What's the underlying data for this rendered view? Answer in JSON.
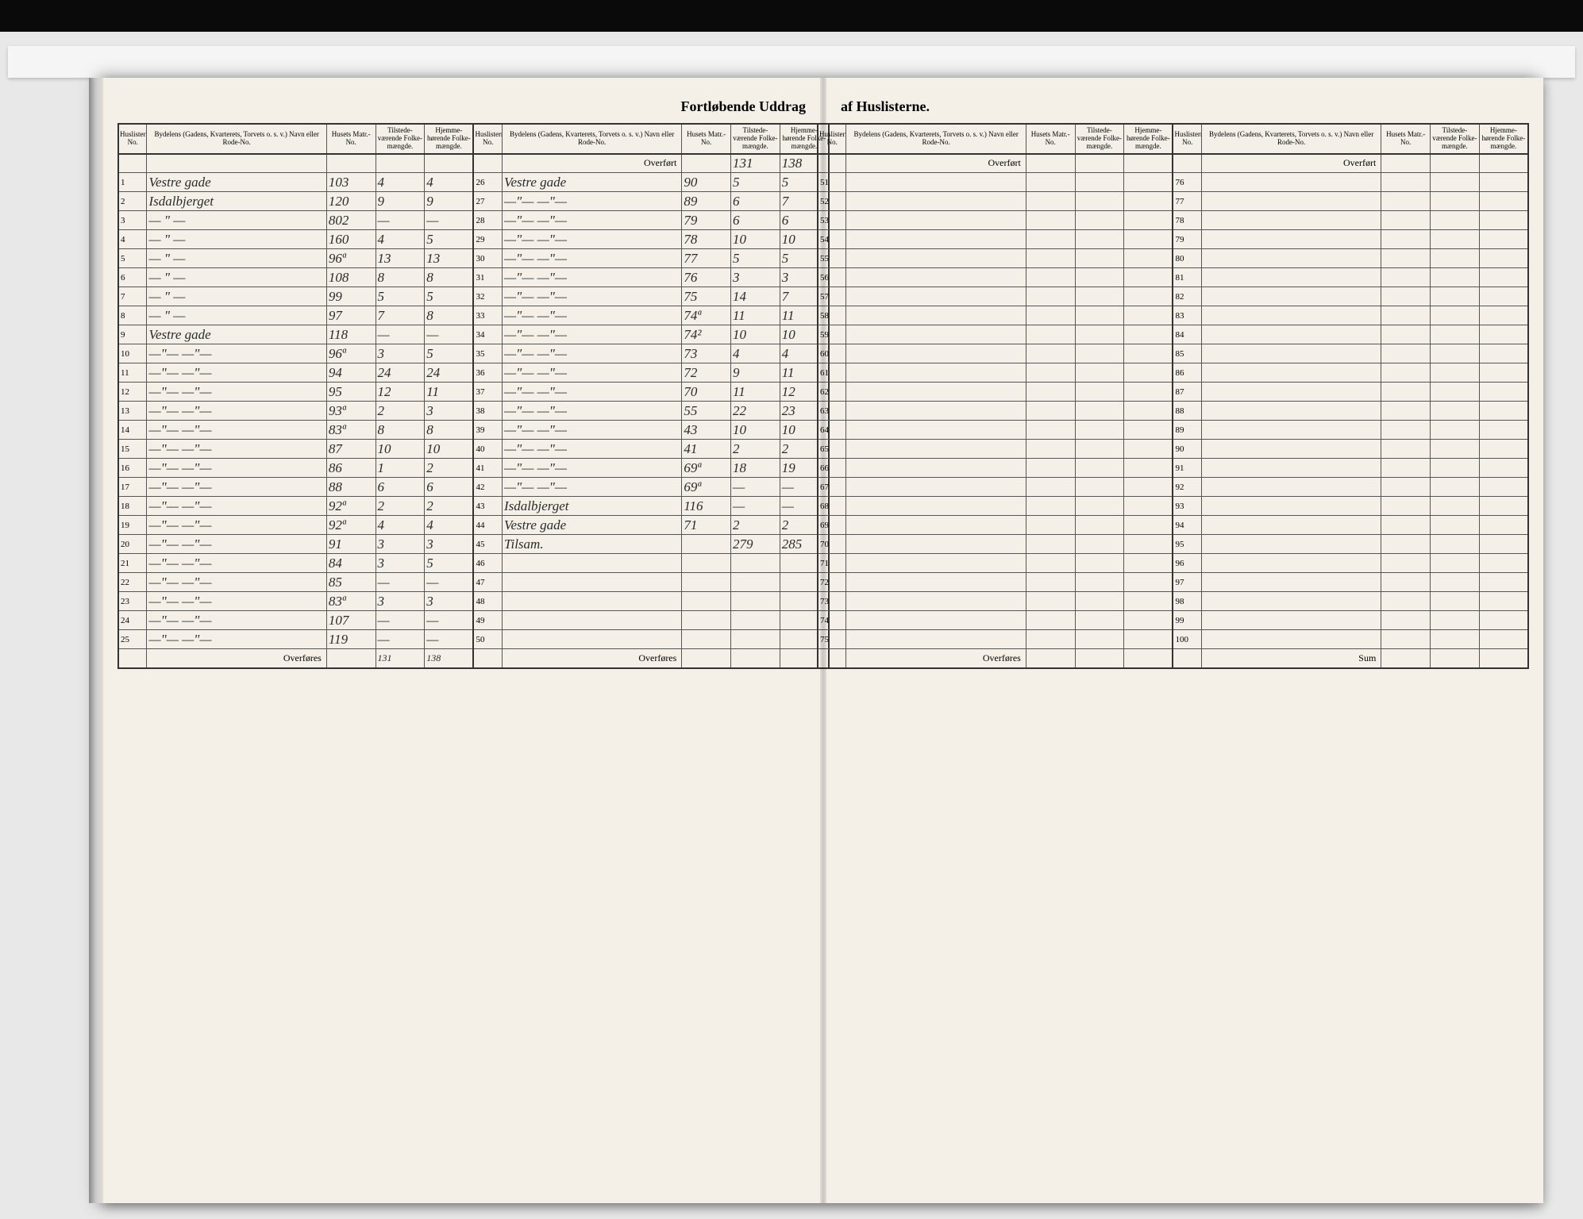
{
  "title_left": "Fortløbende Uddrag",
  "title_right": "af Huslisterne.",
  "headers": {
    "idx": "Huslisternes No.",
    "name": "Bydelens (Gadens, Kvarterets, Torvets o. s. v.) Navn eller Rode-No.",
    "matr": "Husets Matr.- No.",
    "pop1": "Tilstede- værende Folke- mængde.",
    "pop2": "Hjemme- hørende Folke- mængde."
  },
  "overfort": "Overført",
  "overfores": "Overføres",
  "tilsam": "Tilsam.",
  "sum": "Sum",
  "left_block1": [
    {
      "i": "1",
      "name": "Vestre gade",
      "m": "103",
      "a": "4",
      "b": "4"
    },
    {
      "i": "2",
      "name": "Isdalbjerget",
      "m": "120",
      "a": "9",
      "b": "9"
    },
    {
      "i": "3",
      "name": "— \" —",
      "m": "802",
      "a": "—",
      "b": "—"
    },
    {
      "i": "4",
      "name": "— \" —",
      "m": "160",
      "a": "4",
      "b": "5"
    },
    {
      "i": "5",
      "name": "— \" —",
      "m": "96ª",
      "a": "13",
      "b": "13"
    },
    {
      "i": "6",
      "name": "— \" —",
      "m": "108",
      "a": "8",
      "b": "8"
    },
    {
      "i": "7",
      "name": "— \" —",
      "m": "99",
      "a": "5",
      "b": "5"
    },
    {
      "i": "8",
      "name": "— \" —",
      "m": "97",
      "a": "7",
      "b": "8"
    },
    {
      "i": "9",
      "name": "Vestre gade",
      "m": "118",
      "a": "—",
      "b": "—"
    },
    {
      "i": "10",
      "name": "—\"—   —\"—",
      "m": "96ª",
      "a": "3",
      "b": "5"
    },
    {
      "i": "11",
      "name": "—\"—   —\"—",
      "m": "94",
      "a": "24",
      "b": "24"
    },
    {
      "i": "12",
      "name": "—\"—   —\"—",
      "m": "95",
      "a": "12",
      "b": "11"
    },
    {
      "i": "13",
      "name": "—\"—   —\"—",
      "m": "93ª",
      "a": "2",
      "b": "3"
    },
    {
      "i": "14",
      "name": "—\"—   —\"—",
      "m": "83ª",
      "a": "8",
      "b": "8"
    },
    {
      "i": "15",
      "name": "—\"—   —\"—",
      "m": "87",
      "a": "10",
      "b": "10"
    },
    {
      "i": "16",
      "name": "—\"—   —\"—",
      "m": "86",
      "a": "1",
      "b": "2"
    },
    {
      "i": "17",
      "name": "—\"—   —\"—",
      "m": "88",
      "a": "6",
      "b": "6"
    },
    {
      "i": "18",
      "name": "—\"—   —\"—",
      "m": "92ª",
      "a": "2",
      "b": "2"
    },
    {
      "i": "19",
      "name": "—\"—   —\"—",
      "m": "92ª",
      "a": "4",
      "b": "4"
    },
    {
      "i": "20",
      "name": "—\"—   —\"—",
      "m": "91",
      "a": "3",
      "b": "3"
    },
    {
      "i": "21",
      "name": "—\"—   —\"—",
      "m": "84",
      "a": "3",
      "b": "5"
    },
    {
      "i": "22",
      "name": "—\"—   —\"—",
      "m": "85",
      "a": "—",
      "b": "—"
    },
    {
      "i": "23",
      "name": "—\"—   —\"—",
      "m": "83ª",
      "a": "3",
      "b": "3"
    },
    {
      "i": "24",
      "name": "—\"—   —\"—",
      "m": "107",
      "a": "—",
      "b": "—"
    },
    {
      "i": "25",
      "name": "—\"—   —\"—",
      "m": "119",
      "a": "—",
      "b": "—"
    }
  ],
  "left_block1_footer": {
    "a": "131",
    "b": "138"
  },
  "left_block2_overfort": {
    "a": "131",
    "b": "138"
  },
  "left_block2": [
    {
      "i": "26",
      "name": "Vestre gade",
      "m": "90",
      "a": "5",
      "b": "5"
    },
    {
      "i": "27",
      "name": "—\"—   —\"—",
      "m": "89",
      "a": "6",
      "b": "7"
    },
    {
      "i": "28",
      "name": "—\"—   —\"—",
      "m": "79",
      "a": "6",
      "b": "6"
    },
    {
      "i": "29",
      "name": "—\"—   —\"—",
      "m": "78",
      "a": "10",
      "b": "10"
    },
    {
      "i": "30",
      "name": "—\"—   —\"—",
      "m": "77",
      "a": "5",
      "b": "5"
    },
    {
      "i": "31",
      "name": "—\"—   —\"—",
      "m": "76",
      "a": "3",
      "b": "3"
    },
    {
      "i": "32",
      "name": "—\"—   —\"—",
      "m": "75",
      "a": "14",
      "b": "7"
    },
    {
      "i": "33",
      "name": "—\"—   —\"—",
      "m": "74ª",
      "a": "11",
      "b": "11"
    },
    {
      "i": "34",
      "name": "—\"—   —\"—",
      "m": "74²",
      "a": "10",
      "b": "10"
    },
    {
      "i": "35",
      "name": "—\"—   —\"—",
      "m": "73",
      "a": "4",
      "b": "4"
    },
    {
      "i": "36",
      "name": "—\"—   —\"—",
      "m": "72",
      "a": "9",
      "b": "11"
    },
    {
      "i": "37",
      "name": "—\"—   —\"—",
      "m": "70",
      "a": "11",
      "b": "12"
    },
    {
      "i": "38",
      "name": "—\"—   —\"—",
      "m": "55",
      "a": "22",
      "b": "23"
    },
    {
      "i": "39",
      "name": "—\"—   —\"—",
      "m": "43",
      "a": "10",
      "b": "10"
    },
    {
      "i": "40",
      "name": "—\"—   —\"—",
      "m": "41",
      "a": "2",
      "b": "2"
    },
    {
      "i": "41",
      "name": "—\"—   —\"—",
      "m": "69ª",
      "a": "18",
      "b": "19"
    },
    {
      "i": "42",
      "name": "—\"—   —\"—",
      "m": "69ª",
      "a": "—",
      "b": "—"
    },
    {
      "i": "43",
      "name": "Isdalbjerget",
      "m": "116",
      "a": "—",
      "b": "—"
    },
    {
      "i": "44",
      "name": "Vestre gade",
      "m": "71",
      "a": "2",
      "b": "2"
    },
    {
      "i": "45",
      "name": "Tilsam.",
      "m": "",
      "a": "279",
      "b": "285"
    },
    {
      "i": "46",
      "name": "",
      "m": "",
      "a": "",
      "b": ""
    },
    {
      "i": "47",
      "name": "",
      "m": "",
      "a": "",
      "b": ""
    },
    {
      "i": "48",
      "name": "",
      "m": "",
      "a": "",
      "b": ""
    },
    {
      "i": "49",
      "name": "",
      "m": "",
      "a": "",
      "b": ""
    },
    {
      "i": "50",
      "name": "",
      "m": "",
      "a": "",
      "b": ""
    }
  ],
  "right_block1_idx": [
    "51",
    "52",
    "53",
    "54",
    "55",
    "56",
    "57",
    "58",
    "59",
    "60",
    "61",
    "62",
    "63",
    "64",
    "65",
    "66",
    "67",
    "68",
    "69",
    "70",
    "71",
    "72",
    "73",
    "74",
    "75"
  ],
  "right_block2_idx": [
    "76",
    "77",
    "78",
    "79",
    "80",
    "81",
    "82",
    "83",
    "84",
    "85",
    "86",
    "87",
    "88",
    "89",
    "90",
    "91",
    "92",
    "93",
    "94",
    "95",
    "96",
    "97",
    "98",
    "99",
    "100"
  ]
}
